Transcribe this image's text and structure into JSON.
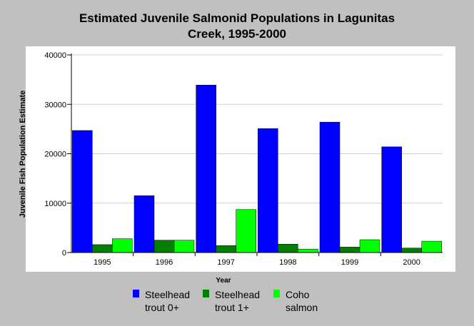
{
  "chart_data": {
    "type": "bar",
    "title_lines": [
      "Estimated Juvenile Salmonid Populations in Lagunitas",
      "Creek, 1995-2000"
    ],
    "xlabel": "Year",
    "ylabel": "Juvenile Fish Population Estimate",
    "categories": [
      "1995",
      "1996",
      "1997",
      "1998",
      "1999",
      "2000"
    ],
    "ylim": [
      0,
      40000
    ],
    "yticks": [
      0,
      10000,
      20000,
      30000,
      40000
    ],
    "grid": true,
    "legend_position": "bottom",
    "series": [
      {
        "name": "Steelhead trout 0+",
        "label_lines": [
          "Steelhead",
          "trout 0+"
        ],
        "color": "#0000ff",
        "values": [
          24700,
          11500,
          33900,
          25100,
          26400,
          21400
        ]
      },
      {
        "name": "Steelhead trout 1+",
        "label_lines": [
          "Steelhead",
          "trout 1+"
        ],
        "color": "#007f00",
        "values": [
          1600,
          2500,
          1400,
          1700,
          1100,
          900
        ]
      },
      {
        "name": "Coho salmon",
        "label_lines": [
          "Coho",
          "salmon"
        ],
        "color": "#00ff00",
        "values": [
          2800,
          2500,
          8700,
          700,
          2600,
          2300
        ]
      }
    ]
  }
}
